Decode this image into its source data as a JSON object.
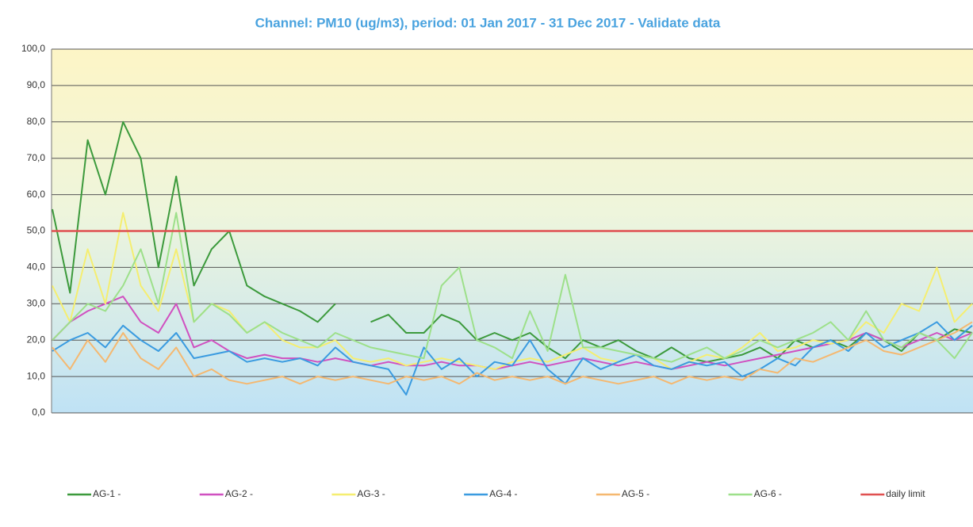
{
  "chart_data": {
    "type": "line",
    "title": "Channel: PM10 (ug/m3), period: 01 Jan 2017 - 31 Dec 2017 - Validate data",
    "ylim": [
      0,
      100
    ],
    "yticks": [
      {
        "value": 0,
        "label": "0,0"
      },
      {
        "value": 10,
        "label": "10,0"
      },
      {
        "value": 20,
        "label": "20,0"
      },
      {
        "value": 30,
        "label": "30,0"
      },
      {
        "value": 40,
        "label": "40,0"
      },
      {
        "value": 50,
        "label": "50,0"
      },
      {
        "value": 60,
        "label": "60,0"
      },
      {
        "value": 70,
        "label": "70,0"
      },
      {
        "value": 80,
        "label": "80,0"
      },
      {
        "value": 90,
        "label": "90,0"
      },
      {
        "value": 100,
        "label": "100,0"
      }
    ],
    "grid": true,
    "legend": "bottom",
    "series": [
      {
        "name": "AG-1 -",
        "color": "#3c9a3c",
        "values": [
          56,
          33,
          75,
          60,
          80,
          70,
          40,
          65,
          35,
          45,
          50,
          35,
          32,
          30,
          28,
          25,
          30,
          null,
          25,
          27,
          22,
          22,
          27,
          25,
          20,
          22,
          20,
          22,
          18,
          15,
          20,
          18,
          20,
          17,
          15,
          18,
          15,
          14,
          15,
          16,
          18,
          15,
          20,
          18,
          20,
          18,
          22,
          20,
          17,
          22,
          20,
          23,
          22
        ]
      },
      {
        "name": "AG-2 -",
        "color": "#d050c0",
        "values": [
          20,
          25,
          28,
          30,
          32,
          25,
          22,
          30,
          18,
          20,
          17,
          15,
          16,
          15,
          15,
          14,
          15,
          14,
          13,
          14,
          13,
          13,
          14,
          13,
          13,
          12,
          13,
          14,
          13,
          14,
          15,
          14,
          13,
          14,
          13,
          12,
          13,
          14,
          13,
          14,
          15,
          16,
          17,
          18,
          19,
          20,
          22,
          20,
          18,
          20,
          22,
          20,
          22
        ]
      },
      {
        "name": "AG-3 -",
        "color": "#f5ee70",
        "values": [
          35,
          25,
          45,
          30,
          55,
          35,
          28,
          45,
          25,
          30,
          28,
          22,
          25,
          20,
          18,
          18,
          20,
          15,
          14,
          15,
          13,
          14,
          15,
          14,
          13,
          12,
          14,
          15,
          14,
          16,
          18,
          15,
          14,
          16,
          15,
          12,
          14,
          16,
          15,
          18,
          22,
          17,
          18,
          20,
          19,
          20,
          25,
          22,
          30,
          28,
          40,
          25,
          30
        ]
      },
      {
        "name": "AG-4 -",
        "color": "#3a9be0",
        "values": [
          17,
          20,
          22,
          18,
          24,
          20,
          17,
          22,
          15,
          16,
          17,
          14,
          15,
          14,
          15,
          13,
          18,
          14,
          13,
          12,
          5,
          18,
          12,
          15,
          10,
          14,
          13,
          20,
          12,
          8,
          15,
          12,
          14,
          16,
          13,
          12,
          14,
          13,
          14,
          10,
          12,
          15,
          13,
          18,
          20,
          17,
          22,
          18,
          20,
          22,
          25,
          20,
          24
        ]
      },
      {
        "name": "AG-5 -",
        "color": "#f5b870",
        "values": [
          18,
          12,
          20,
          14,
          22,
          15,
          12,
          18,
          10,
          12,
          9,
          8,
          9,
          10,
          8,
          10,
          9,
          10,
          9,
          8,
          10,
          9,
          10,
          8,
          11,
          9,
          10,
          9,
          10,
          8,
          10,
          9,
          8,
          9,
          10,
          8,
          10,
          9,
          10,
          9,
          12,
          11,
          15,
          14,
          16,
          18,
          20,
          17,
          16,
          18,
          20,
          22,
          25
        ]
      },
      {
        "name": "AG-6 -",
        "color": "#9de08a",
        "values": [
          20,
          25,
          30,
          28,
          35,
          45,
          30,
          55,
          25,
          30,
          27,
          22,
          25,
          22,
          20,
          18,
          22,
          20,
          18,
          17,
          16,
          15,
          35,
          40,
          20,
          18,
          15,
          28,
          17,
          38,
          18,
          18,
          17,
          16,
          15,
          14,
          16,
          18,
          15,
          17,
          20,
          18,
          20,
          22,
          25,
          20,
          28,
          20,
          18,
          22,
          20,
          15,
          22
        ]
      }
    ],
    "limit": {
      "name": "daily limit",
      "value": 50,
      "color": "#e05050"
    }
  }
}
